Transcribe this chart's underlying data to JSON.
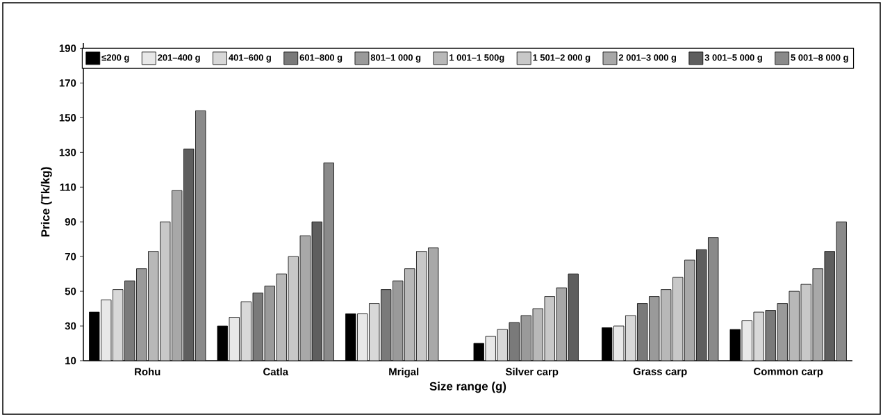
{
  "chart_data": {
    "type": "bar",
    "xlabel": "Size range (g)",
    "ylabel": "Price (Tk/kg)",
    "categories": [
      "Rohu",
      "Catla",
      "Mrigal",
      "Silver carp",
      "Grass carp",
      "Common carp"
    ],
    "ylim": [
      10,
      193
    ],
    "yticks": [
      10,
      30,
      50,
      70,
      90,
      110,
      130,
      150,
      170,
      190
    ],
    "legend": "top",
    "series": [
      {
        "name": "≤200 g",
        "color": "#000000",
        "values": [
          38,
          30,
          37,
          20,
          29,
          28
        ]
      },
      {
        "name": "201–400 g",
        "color": "#e8e8e8",
        "values": [
          45,
          35,
          37,
          24,
          30,
          33
        ]
      },
      {
        "name": "401–600 g",
        "color": "#d8d8d8",
        "values": [
          51,
          44,
          43,
          28,
          36,
          38
        ]
      },
      {
        "name": "601–800 g",
        "color": "#7a7a7a",
        "values": [
          56,
          49,
          51,
          32,
          43,
          39
        ]
      },
      {
        "name": "801–1 000 g",
        "color": "#9a9a9a",
        "values": [
          63,
          53,
          56,
          36,
          47,
          43
        ]
      },
      {
        "name": "1 001–1 500g",
        "color": "#b8b8b8",
        "values": [
          73,
          60,
          63,
          40,
          51,
          50
        ]
      },
      {
        "name": "1 501–2 000 g",
        "color": "#c8c8c8",
        "values": [
          90,
          70,
          73,
          47,
          58,
          54
        ]
      },
      {
        "name": "2 001–3 000 g",
        "color": "#a8a8a8",
        "values": [
          108,
          82,
          75,
          52,
          68,
          63
        ]
      },
      {
        "name": "3 001–5 000 g",
        "color": "#5e5e5e",
        "values": [
          132,
          90,
          null,
          60,
          74,
          73
        ]
      },
      {
        "name": "5 001–8 000 g",
        "color": "#8a8a8a",
        "values": [
          154,
          124,
          null,
          null,
          81,
          90
        ]
      }
    ]
  }
}
